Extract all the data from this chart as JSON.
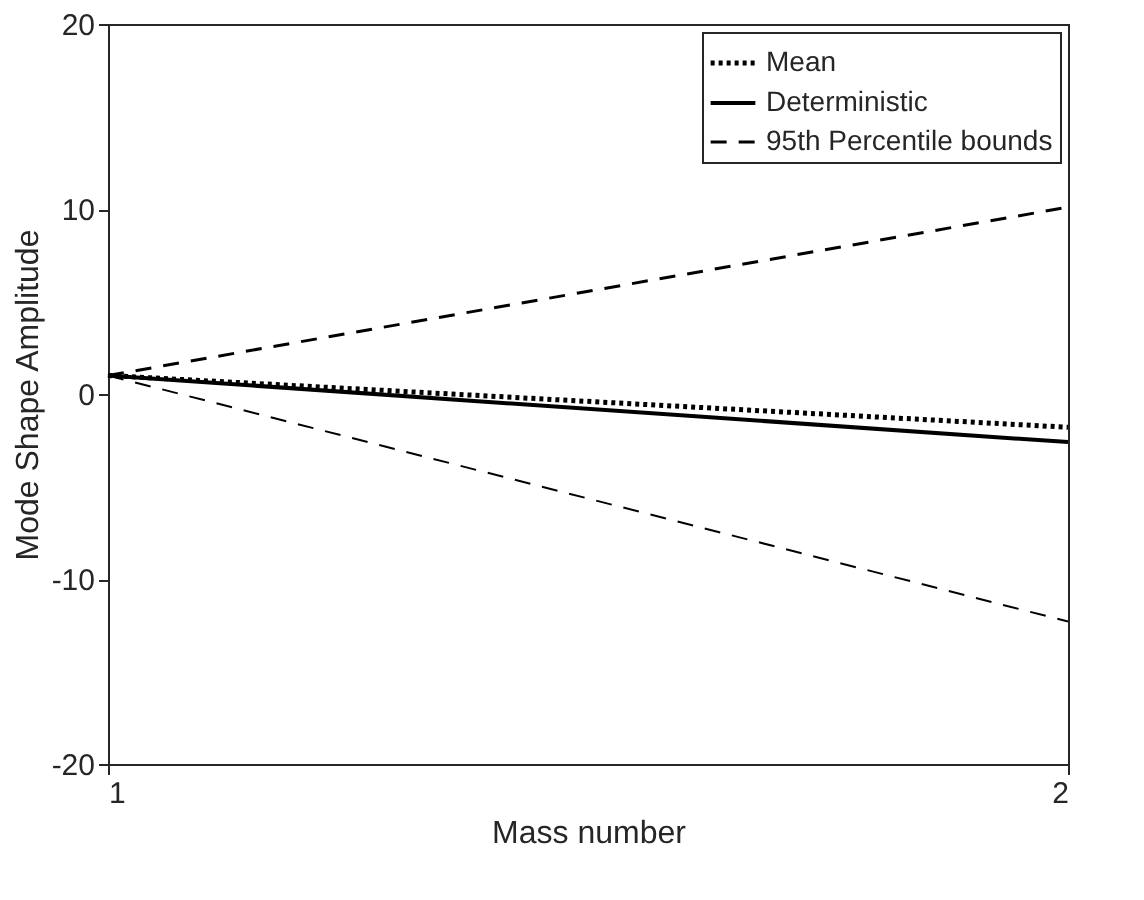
{
  "chart_data": {
    "type": "line",
    "xlabel": "Mass number",
    "ylabel": "Mode Shape Amplitude",
    "x": [
      1,
      2
    ],
    "xlim": [
      1,
      2
    ],
    "xticks": [
      1,
      2
    ],
    "ylim": [
      -20,
      20
    ],
    "yticks": [
      -20,
      -10,
      0,
      10,
      20
    ],
    "grid": false,
    "legend": "top right",
    "series": [
      {
        "name": "Mean",
        "color": "#000000",
        "values": [
          1,
          -1.8
        ],
        "line_style": "dotted"
      },
      {
        "name": "Deterministic",
        "color": "#000000",
        "values": [
          1,
          -2.6
        ],
        "line_style": "solid"
      },
      {
        "name": "95th Percentile bounds",
        "color": "#000000",
        "values": [
          1,
          10.1
        ],
        "line_style": "dashed"
      },
      {
        "color": "#000000",
        "values": [
          1,
          -12.3
        ],
        "line_style": "dashed"
      }
    ]
  }
}
